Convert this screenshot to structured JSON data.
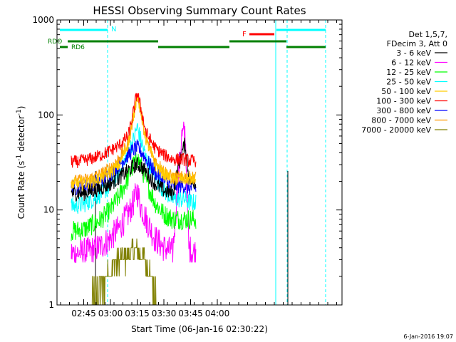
{
  "chart_data": {
    "type": "line",
    "title": "HESSI Observing Summary Count Rates",
    "xlabel": "Start Time (06-Jan-16 02:30:22)",
    "ylabel_main": "Count Rate (s",
    "ylabel_sup1": "-1",
    "ylabel_mid": " detector",
    "ylabel_sup2": "-1",
    "ylabel_end": ")",
    "yscale": "log",
    "xlim_min": [
      30,
      190
    ],
    "ylim": [
      1,
      1000
    ],
    "x_ticks": [
      {
        "min": 45,
        "label": "02:45"
      },
      {
        "min": 60,
        "label": "03:00"
      },
      {
        "min": 75,
        "label": "03:15"
      },
      {
        "min": 90,
        "label": "03:30"
      },
      {
        "min": 105,
        "label": "03:45"
      },
      {
        "min": 120,
        "label": "04:00"
      }
    ],
    "y_ticks": [
      {
        "value": 1,
        "label": "1"
      },
      {
        "value": 10,
        "label": "10"
      },
      {
        "value": 100,
        "label": "100"
      },
      {
        "value": 1000,
        "label": "1000"
      }
    ],
    "legend_header": [
      "Det 1,5,7,",
      "FDecim 3, Att 0"
    ],
    "series": [
      {
        "name": "3 - 6 keV",
        "color": "#000000",
        "x": [
          38,
          40,
          45,
          50,
          55,
          60,
          65,
          70,
          73,
          75,
          77,
          80,
          85,
          90,
          95,
          98,
          100,
          102,
          104,
          106,
          108
        ],
        "values": [
          15,
          15,
          15,
          16,
          17,
          19,
          22,
          26,
          29,
          30,
          29,
          25,
          19,
          16,
          15,
          27,
          40,
          50,
          22,
          19,
          20
        ]
      },
      {
        "name": "6 - 12 keV",
        "color": "#ff00ff",
        "x": [
          38,
          40,
          45,
          50,
          55,
          60,
          65,
          70,
          73,
          75,
          77,
          80,
          85,
          90,
          95,
          98,
          100,
          102,
          104,
          106,
          108
        ],
        "values": [
          3.5,
          3.5,
          3.6,
          3.8,
          4.2,
          5,
          6.5,
          9,
          12,
          16,
          11,
          8,
          5,
          4,
          3.6,
          20,
          60,
          65,
          4,
          3.6,
          3.6
        ]
      },
      {
        "name": "12 - 25 keV",
        "color": "#00ff00",
        "x": [
          38,
          40,
          45,
          50,
          55,
          60,
          65,
          70,
          73,
          75,
          77,
          80,
          85,
          90,
          95,
          98,
          100,
          102,
          104,
          106,
          108
        ],
        "values": [
          6,
          6,
          6.2,
          7,
          8,
          10,
          14,
          22,
          30,
          35,
          30,
          20,
          12,
          9,
          8,
          8,
          8,
          8,
          8,
          8,
          8
        ]
      },
      {
        "name": "25 - 50 keV",
        "color": "#00ffff",
        "x": [
          38,
          40,
          45,
          50,
          55,
          60,
          65,
          70,
          73,
          75,
          77,
          80,
          85,
          90,
          95,
          98,
          100,
          102,
          104,
          106,
          108
        ],
        "values": [
          11,
          11,
          11.5,
          13,
          15,
          18,
          25,
          40,
          55,
          75,
          55,
          35,
          22,
          16,
          13,
          13,
          13,
          13,
          12,
          12,
          12
        ]
      },
      {
        "name": "50 - 100 keV",
        "color": "#ffcc00",
        "x": [
          38,
          40,
          45,
          50,
          55,
          60,
          65,
          70,
          73,
          75,
          77,
          80,
          85,
          90,
          95,
          98,
          100,
          102,
          104,
          106,
          108
        ],
        "values": [
          19,
          19,
          19,
          20,
          22,
          25,
          30,
          50,
          100,
          170,
          110,
          55,
          30,
          24,
          21,
          21,
          21,
          21,
          21,
          21,
          21
        ]
      },
      {
        "name": "100 - 300 keV",
        "color": "#ff0000",
        "x": [
          38,
          40,
          45,
          50,
          55,
          60,
          65,
          70,
          73,
          75,
          77,
          80,
          85,
          90,
          95,
          98,
          100,
          102,
          104,
          106,
          108
        ],
        "values": [
          32,
          32,
          33,
          35,
          38,
          42,
          48,
          60,
          110,
          175,
          120,
          65,
          45,
          38,
          34,
          34,
          34,
          34,
          33,
          33,
          33
        ]
      },
      {
        "name": "300 - 800 keV",
        "color": "#0000ff",
        "x": [
          38,
          40,
          45,
          50,
          55,
          60,
          65,
          70,
          73,
          75,
          77,
          80,
          85,
          90,
          95,
          98,
          100,
          102,
          104,
          106,
          108
        ],
        "values": [
          17,
          17,
          17.5,
          19,
          21,
          24,
          30,
          38,
          43,
          45,
          42,
          34,
          25,
          20,
          18,
          18,
          18,
          18,
          17,
          17,
          17
        ]
      },
      {
        "name": "800 - 7000 keV",
        "color": "#ff9900",
        "x": [
          38,
          40,
          45,
          50,
          55,
          60,
          65,
          70,
          73,
          75,
          77,
          80,
          85,
          90,
          95,
          98,
          100,
          102,
          104,
          106,
          108
        ],
        "values": [
          20,
          20,
          20.5,
          22,
          24,
          28,
          35,
          50,
          95,
          165,
          105,
          55,
          33,
          26,
          22,
          22,
          22,
          22,
          22,
          22,
          22
        ]
      },
      {
        "name": "7000 - 20000 keV",
        "color": "#808000",
        "x": [
          46,
          50,
          55,
          58,
          60,
          62,
          64,
          66,
          68,
          70,
          72,
          74,
          76,
          78,
          80,
          82,
          84,
          86
        ],
        "values": [
          1,
          1.3,
          1.6,
          2,
          2.3,
          2.6,
          2.8,
          3,
          3.2,
          3.5,
          3.8,
          3.8,
          3.5,
          3.2,
          2.8,
          2.3,
          1.7,
          1
        ]
      }
    ],
    "annotations": [
      {
        "label": "N",
        "color": "#00ffff"
      },
      {
        "label": "F",
        "color": "#ff0000"
      },
      {
        "label": "RDO",
        "color": "#008000"
      },
      {
        "label": "RD6",
        "color": "#008000"
      }
    ]
  },
  "footer": {
    "timestamp": "6-Jan-2016 19:07"
  }
}
